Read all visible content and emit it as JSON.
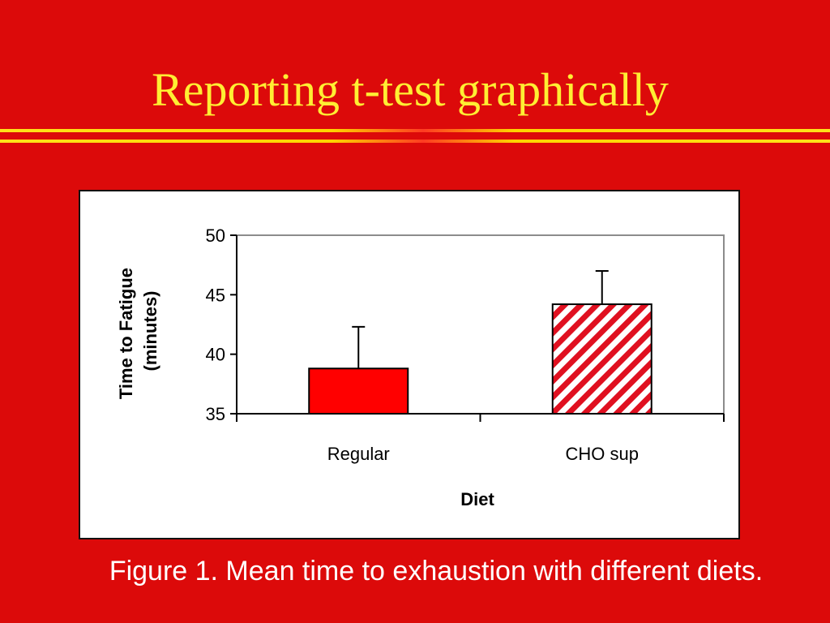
{
  "slide": {
    "title": "Reporting t-test graphically",
    "caption": "Figure 1. Mean time to exhaustion with different diets."
  },
  "colors": {
    "background": "#dc0a0a",
    "title": "#ffee33",
    "bar_regular": "#ff0000",
    "bar_hatch": "#e01020"
  },
  "chart_data": {
    "type": "bar",
    "title": "",
    "xlabel": "Diet",
    "ylabel_line1": "Time to Fatigue",
    "ylabel_line2": "(minutes)",
    "categories": [
      "Regular",
      "CHO sup"
    ],
    "values": [
      38.8,
      44.2
    ],
    "error_upper": [
      42.3,
      47.0
    ],
    "ylim": [
      35,
      50
    ],
    "yticks": [
      35,
      40,
      45,
      50
    ],
    "ytick_labels": [
      "35",
      "40",
      "45",
      "50"
    ],
    "fills": [
      "solid",
      "diagonal-hatch"
    ],
    "grid": false,
    "legend": "none"
  }
}
